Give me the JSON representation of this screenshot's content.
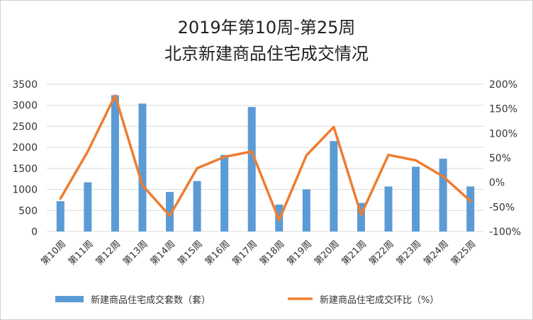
{
  "chart_data": {
    "type": "bar",
    "title_lines": [
      "2019年第10周-第25周",
      "北京新建商品住宅成交情况"
    ],
    "categories": [
      "第10周",
      "第11周",
      "第12周",
      "第13周",
      "第14周",
      "第15周",
      "第16周",
      "第17周",
      "第18周",
      "第19周",
      "第20周",
      "第21周",
      "第22周",
      "第23周",
      "第24周",
      "第25周"
    ],
    "series": [
      {
        "name": "新建商品住宅成交套数（套）",
        "type": "bar",
        "axis": "left",
        "color": "#5b9bd5",
        "values": [
          720,
          1170,
          3240,
          3040,
          940,
          1200,
          1820,
          2960,
          640,
          1000,
          2150,
          680,
          1070,
          1540,
          1730,
          1070
        ]
      },
      {
        "name": "新建商品住宅成交环比（%）",
        "type": "line",
        "axis": "right",
        "color": "#ed7d31",
        "values": [
          -33,
          63,
          177,
          -6,
          -68,
          29,
          52,
          63,
          -77,
          55,
          113,
          -66,
          56,
          45,
          12,
          -38
        ]
      }
    ],
    "left_axis": {
      "ylim": [
        0,
        3500
      ],
      "ticks": [
        0,
        500,
        1000,
        1500,
        2000,
        2500,
        3000,
        3500
      ]
    },
    "right_axis": {
      "ylim": [
        -100,
        200
      ],
      "ticks": [
        "-100%",
        "-50%",
        "0%",
        "50%",
        "100%",
        "150%",
        "200%"
      ]
    },
    "grid": true,
    "legend_position": "bottom"
  }
}
